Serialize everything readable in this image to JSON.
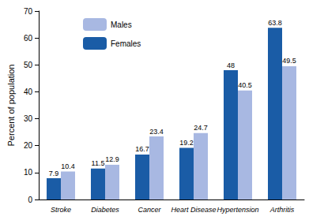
{
  "chart_data": {
    "type": "bar",
    "categories": [
      "Stroke",
      "Diabetes",
      "Cancer",
      "Heart Disease",
      "Hypertension",
      "Arthritis"
    ],
    "series": [
      {
        "name": "Females",
        "color": "#1a5ca6",
        "values": [
          7.9,
          11.5,
          16.7,
          19.2,
          48,
          63.8
        ]
      },
      {
        "name": "Males",
        "color": "#a8b8e2",
        "values": [
          10.4,
          12.9,
          23.4,
          24.7,
          40.5,
          49.5
        ]
      }
    ],
    "y_label": "Percent of population",
    "ylim": [
      0,
      70
    ],
    "yticks": [
      0,
      10,
      20,
      30,
      40,
      50,
      60,
      70
    ],
    "grid": false,
    "legend": "top-left",
    "data_labels": true
  }
}
